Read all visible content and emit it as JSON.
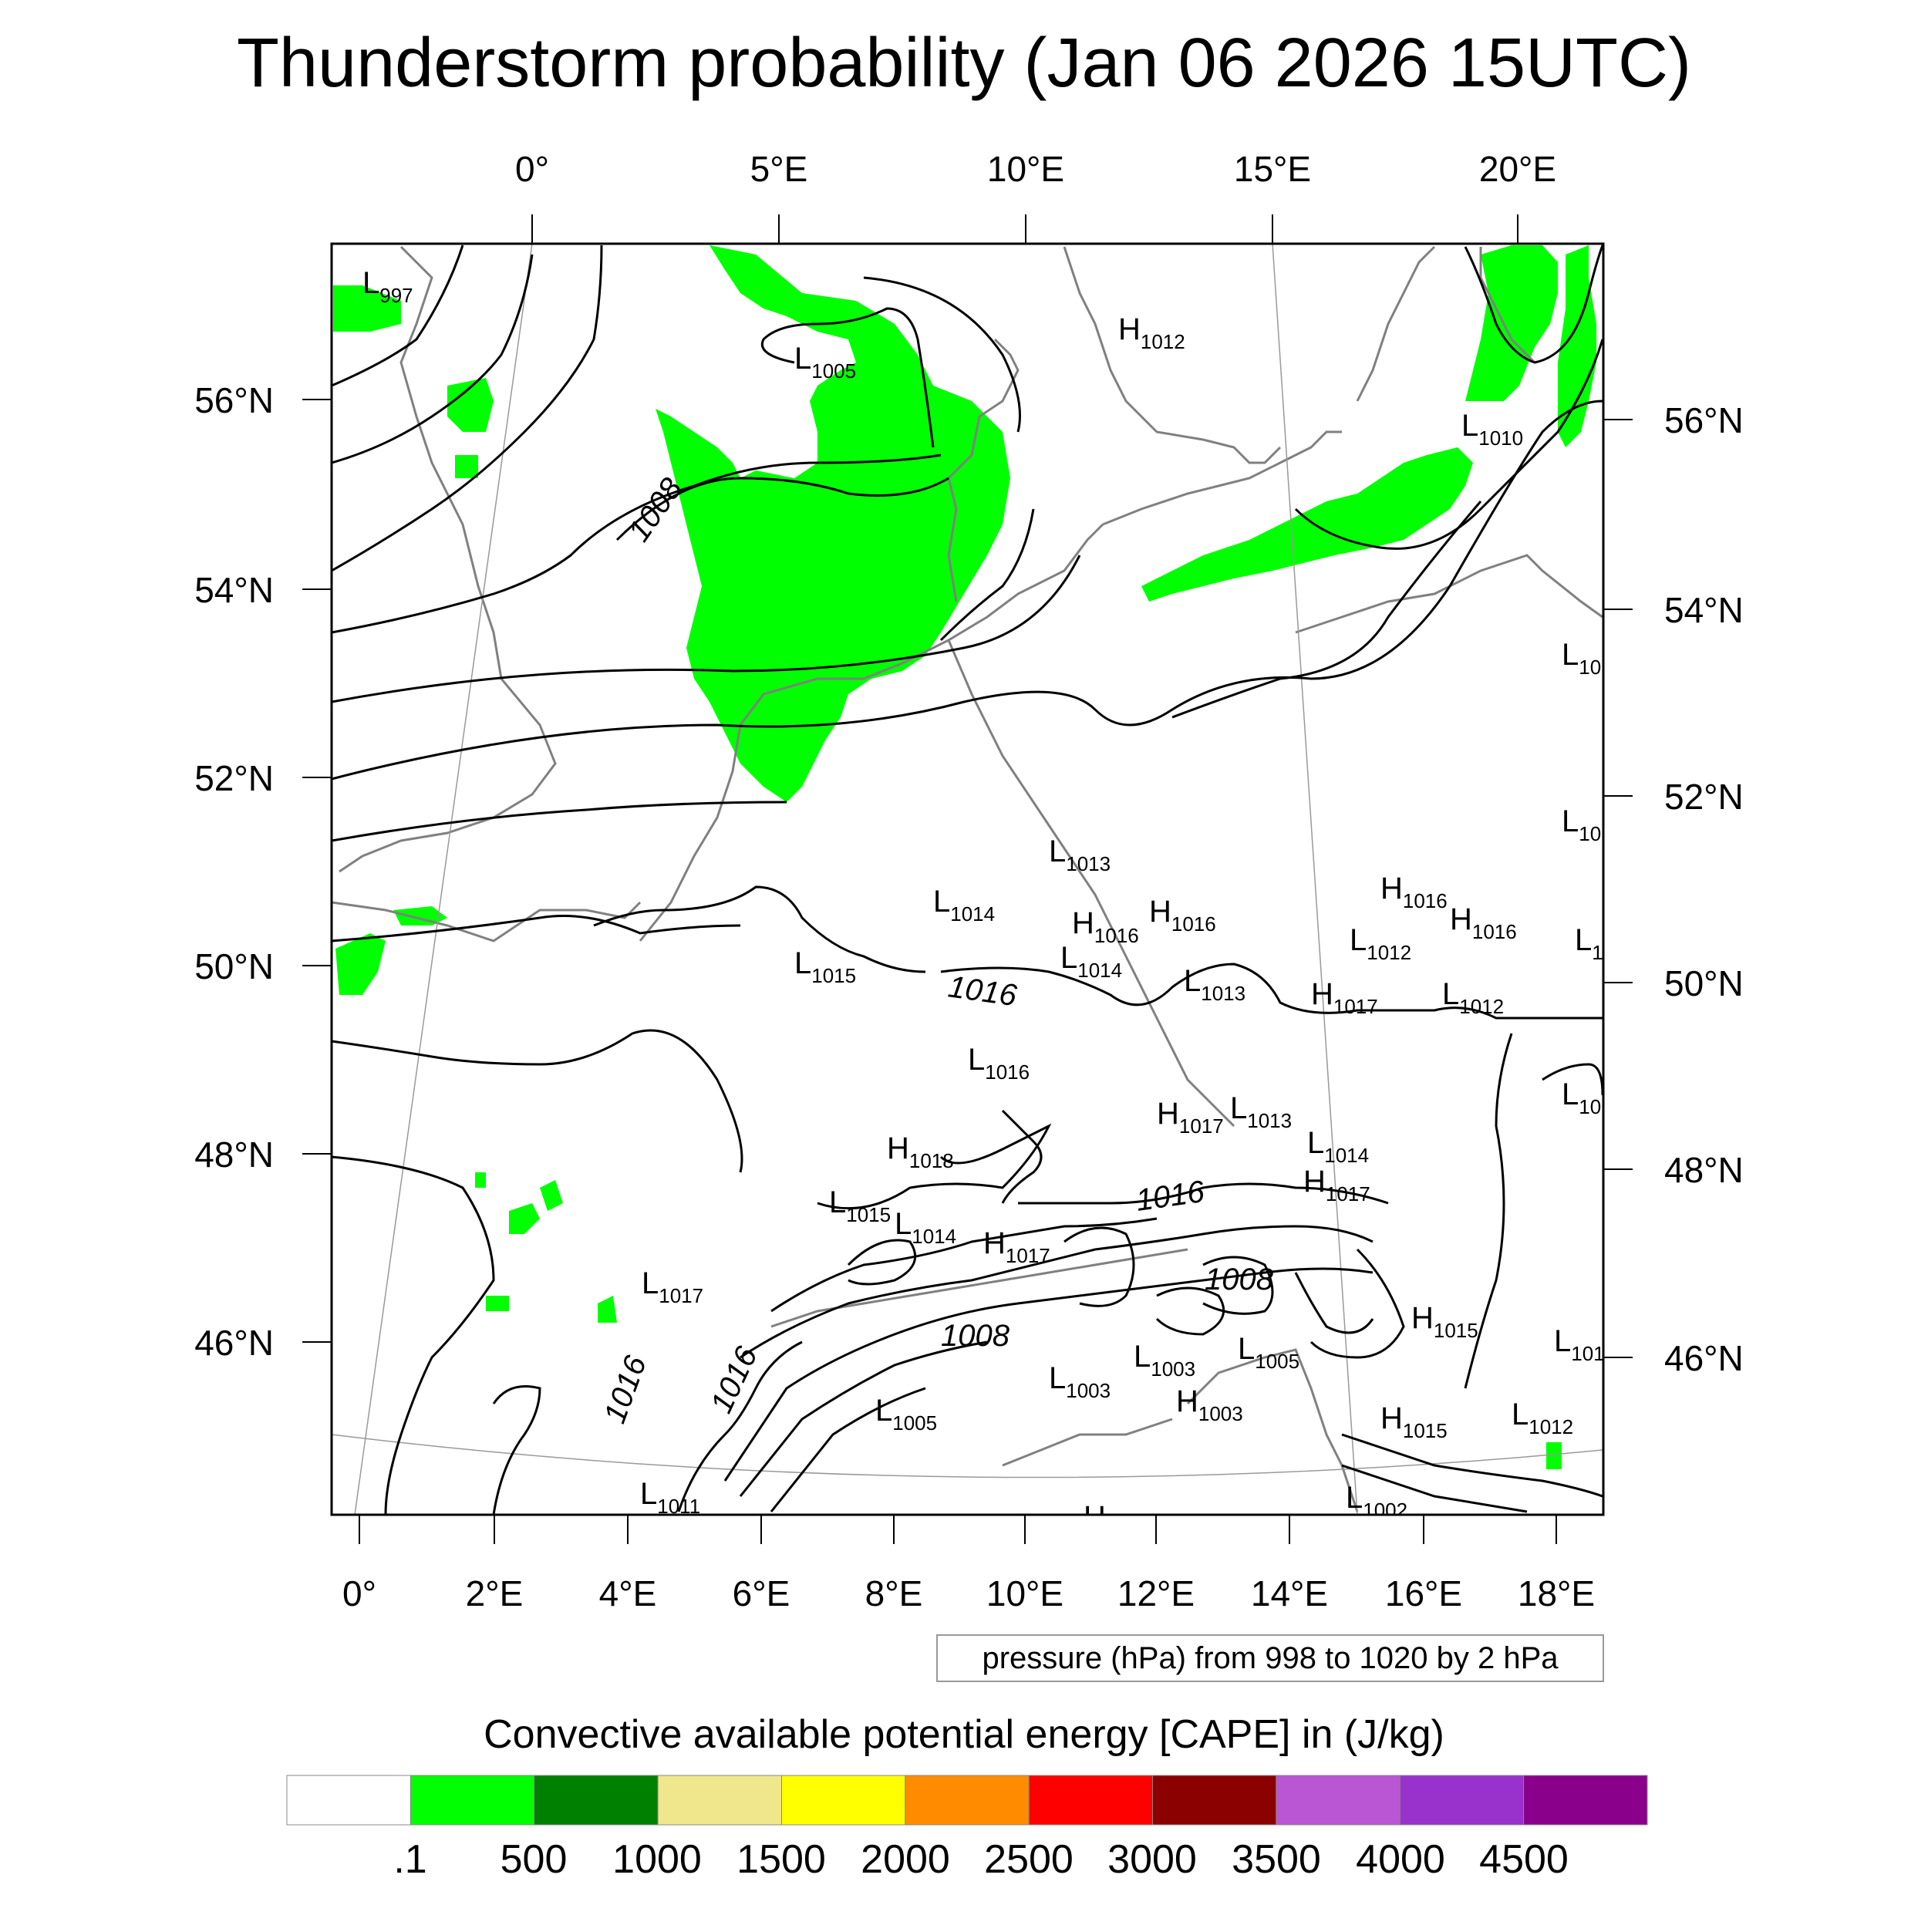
{
  "title": "Thunderstorm probability (Jan 06 2026 15UTC)",
  "axes": {
    "top_lon_labels": [
      "0°",
      "5°E",
      "10°E",
      "15°E",
      "20°E"
    ],
    "bottom_lon_labels": [
      "0°",
      "2°E",
      "4°E",
      "6°E",
      "8°E",
      "10°E",
      "12°E",
      "14°E",
      "16°E",
      "18°E"
    ],
    "left_lat_labels": [
      "56°N",
      "54°N",
      "52°N",
      "50°N",
      "48°N",
      "46°N"
    ],
    "right_lat_labels": [
      "56°N",
      "54°N",
      "52°N",
      "50°N",
      "48°N",
      "46°N"
    ]
  },
  "pressure_systems": [
    {
      "type": "L",
      "value": "997"
    },
    {
      "type": "L",
      "value": "1005"
    },
    {
      "type": "H",
      "value": "1012"
    },
    {
      "type": "L",
      "value": "1010"
    },
    {
      "type": "L",
      "value": "10"
    },
    {
      "type": "L",
      "value": "10"
    },
    {
      "type": "L",
      "value": "1013"
    },
    {
      "type": "L",
      "value": "1014"
    },
    {
      "type": "H",
      "value": "1016"
    },
    {
      "type": "H",
      "value": "1016"
    },
    {
      "type": "H",
      "value": "1016"
    },
    {
      "type": "H",
      "value": "1016"
    },
    {
      "type": "L",
      "value": "1"
    },
    {
      "type": "L",
      "value": "1015"
    },
    {
      "type": "L",
      "value": "1014"
    },
    {
      "type": "L",
      "value": "1012"
    },
    {
      "type": "L",
      "value": "1013"
    },
    {
      "type": "H",
      "value": "1017"
    },
    {
      "type": "L",
      "value": "1012"
    },
    {
      "type": "L",
      "value": "1016"
    },
    {
      "type": "L",
      "value": "10"
    },
    {
      "type": "H",
      "value": "1017"
    },
    {
      "type": "L",
      "value": "1013"
    },
    {
      "type": "H",
      "value": "1018"
    },
    {
      "type": "L",
      "value": "1014"
    },
    {
      "type": "H",
      "value": "1017"
    },
    {
      "type": "L",
      "value": "1015"
    },
    {
      "type": "L",
      "value": "1014"
    },
    {
      "type": "H",
      "value": "1017"
    },
    {
      "type": "L",
      "value": "1017"
    },
    {
      "type": "H",
      "value": "1015"
    },
    {
      "type": "L",
      "value": "101"
    },
    {
      "type": "L",
      "value": "1003"
    },
    {
      "type": "L",
      "value": "1003"
    },
    {
      "type": "L",
      "value": "1005"
    },
    {
      "type": "H",
      "value": "1003"
    },
    {
      "type": "L",
      "value": "1005"
    },
    {
      "type": "H",
      "value": "1015"
    },
    {
      "type": "L",
      "value": "1012"
    },
    {
      "type": "L",
      "value": "1011"
    },
    {
      "type": "L",
      "value": "1002"
    },
    {
      "type": "H",
      "value": ""
    }
  ],
  "contour_labels": [
    "1008",
    "1016",
    "1016",
    "1008",
    "1008",
    "1016",
    "1016"
  ],
  "contour_note": "pressure (hPa) from 998 to 1020 by 2 hPa",
  "colorbar": {
    "title": "Convective available potential energy [CAPE] in (J/kg)",
    "colors": [
      "#ffffff",
      "#00ff00",
      "#008000",
      "#f0e68c",
      "#ffff00",
      "#ff8c00",
      "#ff0000",
      "#8b0000",
      "#ba55d3",
      "#9932cc",
      "#8b008b"
    ],
    "labels": [
      ".1",
      "500",
      "1000",
      "1500",
      "2000",
      "2500",
      "3000",
      "3500",
      "4000",
      "4500"
    ]
  }
}
